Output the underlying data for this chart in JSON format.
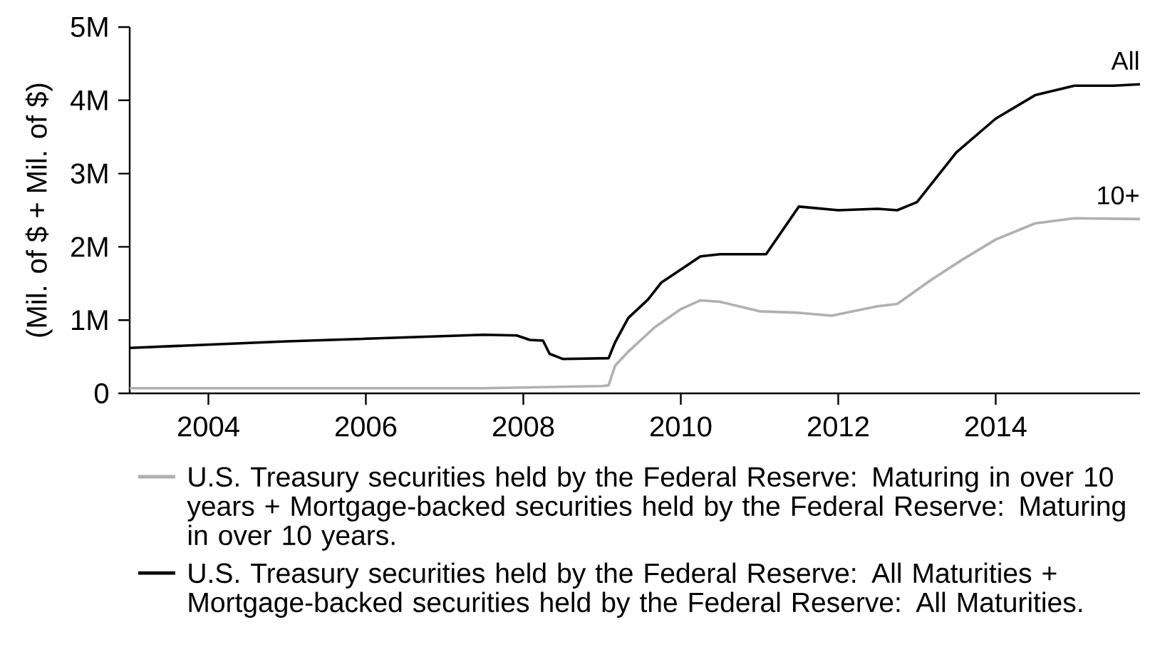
{
  "chart_data": {
    "type": "line",
    "ylabel": "(Mil. of $ + Mil. of $)",
    "xlim": [
      "2003-01",
      "2015-11"
    ],
    "xticks": [
      "2004",
      "2006",
      "2008",
      "2010",
      "2012",
      "2014"
    ],
    "ylim": [
      0,
      5000000
    ],
    "yticks": [
      0,
      {
        "value": 1000000,
        "label": "1M"
      },
      {
        "value": 2000000,
        "label": "2M"
      },
      {
        "value": 3000000,
        "label": "3M"
      },
      {
        "value": 4000000,
        "label": "4M"
      },
      {
        "value": 5000000,
        "label": "5M"
      }
    ],
    "grid": false,
    "legend": "bottom",
    "line_style": "solid",
    "series": [
      {
        "name": "U.S. Treasury securities held by the Federal Reserve: Maturing in over 10 years + Mortgage-backed securities held by the Federal Reserve: Maturing in over 10 years.",
        "color": "#b0b0b0",
        "x": [
          "2003-01",
          "2005-01",
          "2007-07",
          "2008-01",
          "2009-01",
          "2009-02",
          "2009-03",
          "2009-05",
          "2009-09",
          "2010-01",
          "2010-04",
          "2010-07",
          "2011-01",
          "2011-07",
          "2011-12",
          "2012-07",
          "2012-10",
          "2013-03",
          "2013-08",
          "2014-01",
          "2014-07",
          "2015-01",
          "2015-11"
        ],
        "values": [
          70000,
          70000,
          70000,
          80000,
          100000,
          110000,
          380000,
          570000,
          900000,
          1150000,
          1270000,
          1250000,
          1120000,
          1100000,
          1060000,
          1190000,
          1220000,
          1540000,
          1830000,
          2100000,
          2320000,
          2390000,
          2380000
        ]
      },
      {
        "name": "U.S. Treasury securities held by the Federal Reserve: All Maturities + Mortgage-backed securities held by the Federal Reserve: All Maturities.",
        "color": "#000000",
        "x": [
          "2003-01",
          "2005-01",
          "2007-07",
          "2007-12",
          "2008-02",
          "2008-04",
          "2008-05",
          "2008-07",
          "2009-02",
          "2009-03",
          "2009-05",
          "2009-08",
          "2009-10",
          "2010-01",
          "2010-04",
          "2010-07",
          "2011-02",
          "2011-07",
          "2012-01",
          "2012-07",
          "2012-10",
          "2013-01",
          "2013-07",
          "2014-01",
          "2014-07",
          "2015-01",
          "2015-07",
          "2015-11"
        ],
        "values": [
          620000,
          710000,
          800000,
          790000,
          730000,
          720000,
          540000,
          470000,
          480000,
          700000,
          1030000,
          1280000,
          1510000,
          1690000,
          1870000,
          1900000,
          1900000,
          2550000,
          2500000,
          2520000,
          2500000,
          2610000,
          3290000,
          3750000,
          4070000,
          4200000,
          4200000,
          4220000
        ]
      }
    ],
    "annotations": [
      {
        "text": "All",
        "x": "2015-11",
        "y": 4220000
      },
      {
        "text": "10+",
        "x": "2015-11",
        "y": 2380000
      }
    ]
  }
}
